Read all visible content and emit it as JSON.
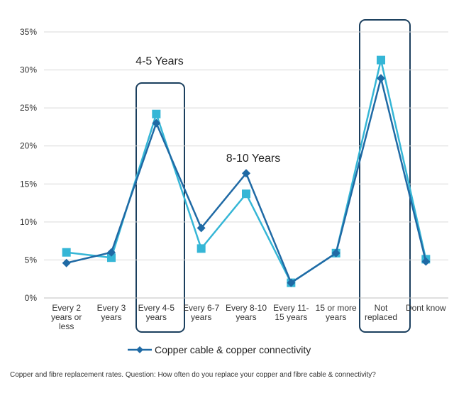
{
  "chart_data": {
    "type": "line",
    "categories": [
      "Every 2 years or less",
      "Every 3 years",
      "Every 4-5 years",
      "Every 6-7 years",
      "Every 8-10 years",
      "Every 11-15 years",
      "15 or more years",
      "Not replaced",
      "Dont know"
    ],
    "series": [
      {
        "name": "Copper cable & copper connectivity",
        "color": "#1f6aa5",
        "marker": "diamond",
        "values": [
          4.6,
          6.0,
          23.0,
          9.2,
          16.4,
          2.0,
          5.9,
          28.9,
          4.8
        ]
      },
      {
        "color": "#35b6d6",
        "marker": "square",
        "values": [
          6.0,
          5.3,
          24.2,
          6.5,
          13.7,
          2.0,
          5.9,
          31.3,
          5.1
        ]
      }
    ],
    "ylim": [
      0,
      35
    ],
    "yticks": [
      {
        "value": 0,
        "label": "0%"
      },
      {
        "value": 5,
        "label": "5%"
      },
      {
        "value": 10,
        "label": "10%"
      },
      {
        "value": 15,
        "label": "15%"
      },
      {
        "value": 20,
        "label": "20%"
      },
      {
        "value": 25,
        "label": "25%"
      },
      {
        "value": 30,
        "label": "30%"
      },
      {
        "value": 35,
        "label": "35%"
      }
    ],
    "grid": true,
    "annotations": [
      "4-5 Years",
      "8-10 Years"
    ],
    "caption": "Copper and fibre replacement rates. Question: How often do you replace your copper and fibre cable & connectivity?"
  }
}
